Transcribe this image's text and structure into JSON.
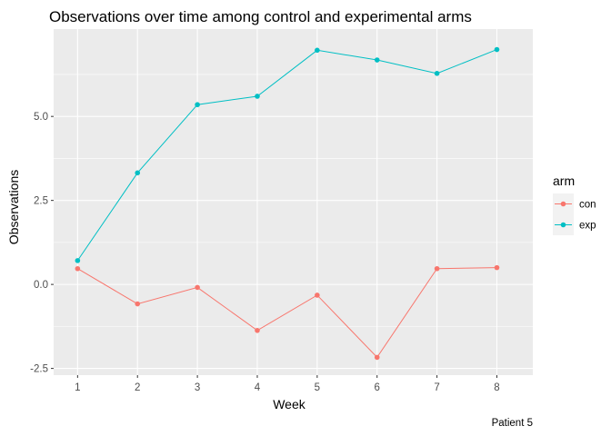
{
  "chart_data": {
    "type": "line",
    "title": "Observations over time among control and experimental arms",
    "xlabel": "Week",
    "ylabel": "Observations",
    "caption": "Patient 5",
    "x": [
      1,
      2,
      3,
      4,
      5,
      6,
      7,
      8
    ],
    "xticks": [
      "1",
      "2",
      "3",
      "4",
      "5",
      "6",
      "7",
      "8"
    ],
    "yticks": [
      -2.5,
      0.0,
      2.5,
      5.0
    ],
    "ytick_labels": [
      "-2.5",
      "0.0",
      "2.5",
      "5.0"
    ],
    "ylim": [
      -2.7,
      7.6
    ],
    "xlim": [
      0.6,
      8.6
    ],
    "grid": true,
    "legend": {
      "title": "arm",
      "position": "right"
    },
    "series": [
      {
        "name": "con",
        "color": "#F8766D",
        "values": [
          0.47,
          -0.58,
          -0.09,
          -1.37,
          -0.32,
          -2.17,
          0.47,
          0.5
        ]
      },
      {
        "name": "exp",
        "color": "#00BFC4",
        "values": [
          0.71,
          3.32,
          5.35,
          5.6,
          6.97,
          6.68,
          6.28,
          6.99
        ]
      }
    ],
    "panel_background": "#EBEBEB",
    "grid_color": "#FFFFFF"
  }
}
